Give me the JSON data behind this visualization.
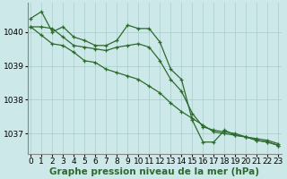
{
  "hours": [
    0,
    1,
    2,
    3,
    4,
    5,
    6,
    7,
    8,
    9,
    10,
    11,
    12,
    13,
    14,
    15,
    16,
    17,
    18,
    19,
    20,
    21,
    22,
    23
  ],
  "line1": [
    1040.4,
    1040.6,
    1040.0,
    1040.15,
    1039.85,
    1039.75,
    1039.6,
    1039.6,
    1039.75,
    1040.2,
    1040.1,
    1040.1,
    1039.7,
    1038.9,
    1038.6,
    1037.4,
    1036.75,
    1036.75,
    1037.1,
    1036.95,
    1036.9,
    1036.85,
    1036.8,
    1036.7
  ],
  "line2": [
    1040.15,
    1040.15,
    1040.1,
    1039.85,
    1039.6,
    1039.55,
    1039.5,
    1039.45,
    1039.55,
    1039.6,
    1039.65,
    1039.55,
    1039.15,
    1038.6,
    1038.25,
    1037.6,
    1037.2,
    1037.1,
    1037.05,
    1037.0,
    1036.9,
    1036.8,
    1036.75,
    1036.65
  ],
  "line3": [
    1040.15,
    1039.9,
    1039.65,
    1039.6,
    1039.4,
    1039.15,
    1039.1,
    1038.9,
    1038.8,
    1038.7,
    1038.6,
    1038.4,
    1038.2,
    1037.9,
    1037.65,
    1037.45,
    1037.25,
    1037.05,
    1037.0,
    1036.95,
    1036.9,
    1036.8,
    1036.75,
    1036.65
  ],
  "line_color": "#2d6a2d",
  "bg_color": "#cce8e8",
  "grid_color": "#aacccc",
  "ylabel_ticks": [
    1037,
    1038,
    1039,
    1040
  ],
  "ylim": [
    1036.4,
    1040.85
  ],
  "xlim": [
    -0.3,
    23.3
  ],
  "xlabel": "Graphe pression niveau de la mer (hPa)",
  "xlabel_fontsize": 7.5,
  "tick_fontsize": 6.5,
  "marker": "+",
  "markersize": 3.5,
  "linewidth": 0.9
}
